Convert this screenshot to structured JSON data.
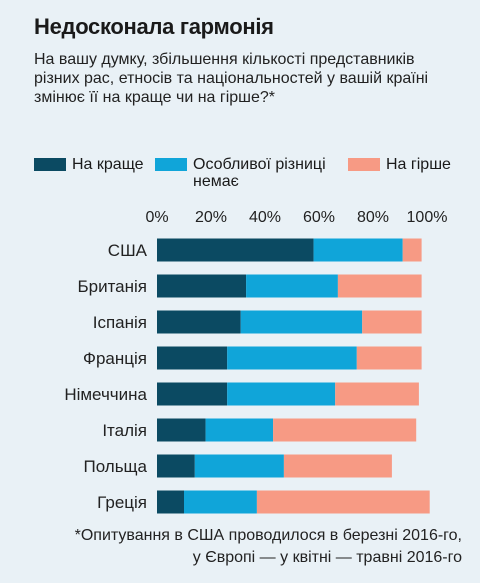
{
  "title": "Недосконала гармонія",
  "subtitle": "На вашу думку, збільшення кількості представників різних рас, етносів та національностей у вашій країні змінює її на краще чи на гірше?*",
  "footnote_line1": "*Опитування в США проводилося в березні 2016-го,",
  "footnote_line2": "у Європі — у квітні — травні 2016-го",
  "colors": {
    "better": "#0b4a62",
    "no_difference": "#10a5d9",
    "worse": "#f79a84",
    "background": "#e9f1f6"
  },
  "chart_data": {
    "type": "bar",
    "orientation": "horizontal",
    "stacked": true,
    "title": "Недосконала гармонія",
    "categories": [
      "США",
      "Британія",
      "Іспанія",
      "Франція",
      "Німеччина",
      "Італія",
      "Польща",
      "Греція"
    ],
    "series": [
      {
        "name": "На краще",
        "color": "#0b4a62",
        "values": [
          58,
          33,
          31,
          26,
          26,
          18,
          14,
          10
        ]
      },
      {
        "name": "Особливої різниці немає",
        "color": "#10a5d9",
        "values": [
          33,
          34,
          45,
          48,
          40,
          25,
          33,
          27
        ]
      },
      {
        "name": "На гірше",
        "color": "#f79a84",
        "values": [
          7,
          31,
          22,
          24,
          31,
          53,
          40,
          64
        ]
      }
    ],
    "xlim": [
      0,
      100
    ],
    "x_ticks": [
      "0%",
      "20%",
      "40%",
      "60%",
      "80%",
      "100%"
    ],
    "legend_position": "top",
    "grid": false
  }
}
